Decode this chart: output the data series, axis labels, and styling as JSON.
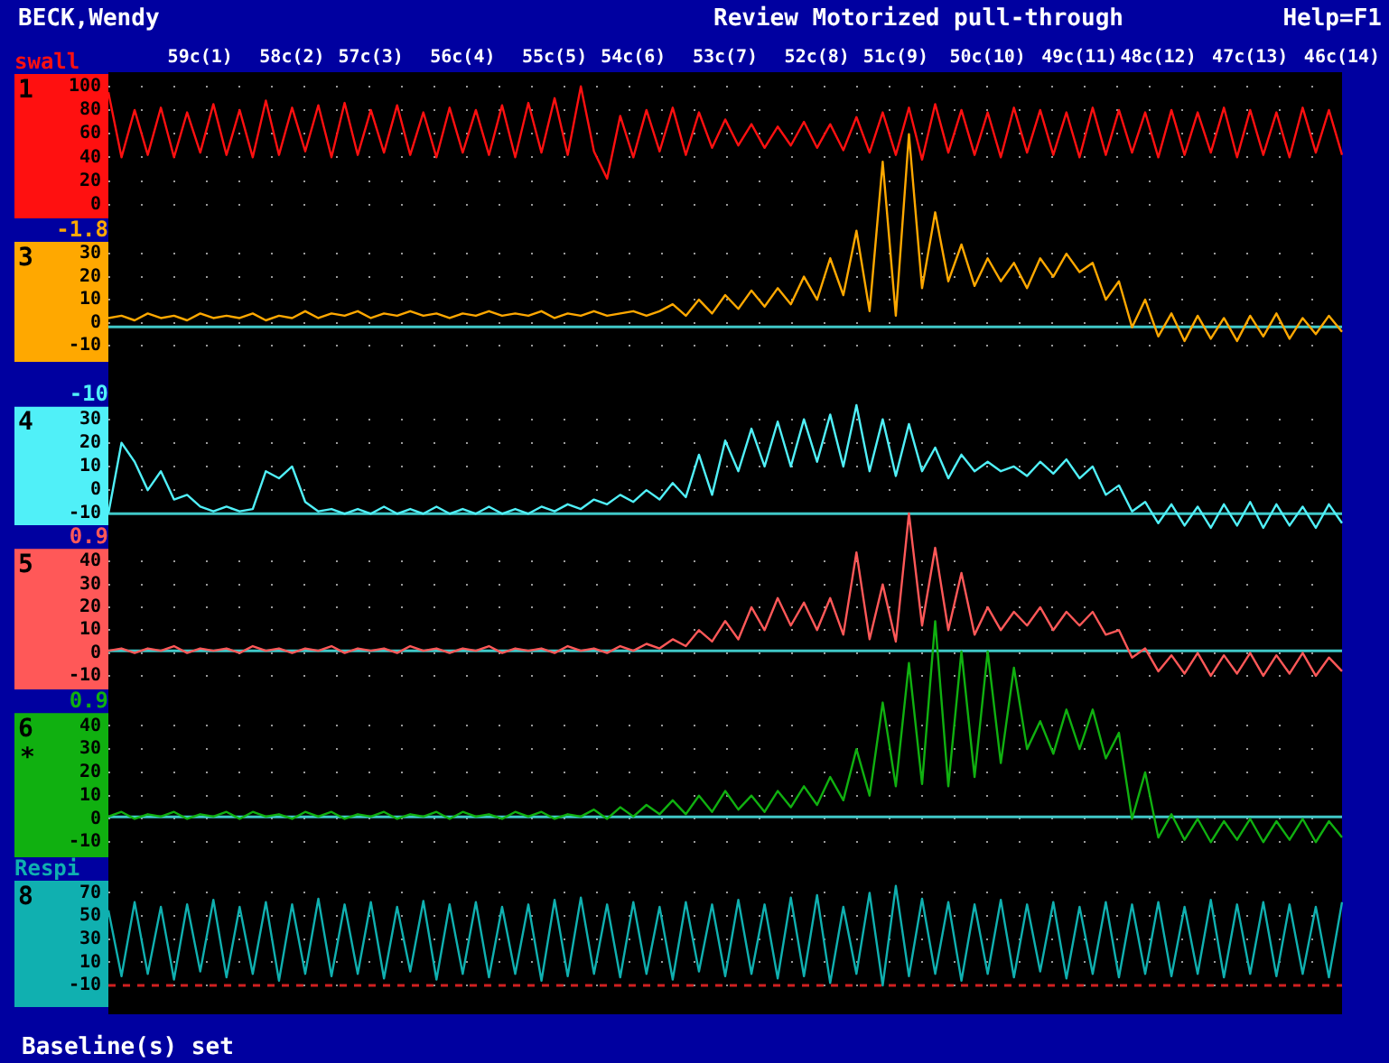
{
  "chart_data": [
    {
      "type": "line",
      "title": "Review Motorized pull-through",
      "annotations": [
        "BECK,Wendy",
        "Help=F1",
        "Baseline(s) set"
      ],
      "ylabel": "swall",
      "categories": [
        null,
        null,
        null,
        null,
        null,
        null,
        null,
        "59c(1)",
        null,
        null,
        null,
        null,
        null,
        null,
        "58c(2)",
        null,
        null,
        null,
        null,
        null,
        "57c(3)",
        null,
        null,
        null,
        null,
        null,
        null,
        "56c(4)",
        null,
        null,
        null,
        null,
        null,
        null,
        "55c(5)",
        null,
        null,
        null,
        null,
        null,
        "54c(6)",
        null,
        null,
        null,
        null,
        null,
        null,
        "53c(7)",
        null,
        null,
        null,
        null,
        null,
        null,
        "52c(8)",
        null,
        null,
        null,
        null,
        null,
        "51c(9)",
        null,
        null,
        null,
        null,
        null,
        null,
        "50c(10)",
        null,
        null,
        null,
        null,
        null,
        null,
        "49c(11)",
        null,
        null,
        null,
        null,
        null,
        "48c(12)",
        null,
        null,
        null,
        null,
        null,
        null,
        "47c(13)",
        null,
        null,
        null,
        null,
        null,
        null,
        "46c(14)"
      ],
      "ylim": [
        -685,
        112
      ],
      "yticks": [
        0,
        20,
        40,
        60,
        80,
        100
      ],
      "grid": "y",
      "series": [
        {
          "name": "1",
          "color": "#ff1010",
          "values": [
            95,
            40,
            80,
            42,
            82,
            40,
            78,
            44,
            85,
            42,
            80,
            40,
            88,
            42,
            82,
            45,
            84,
            40,
            86,
            42,
            80,
            44,
            84,
            42,
            78,
            40,
            82,
            44,
            80,
            42,
            84,
            40,
            86,
            44,
            90,
            42,
            100,
            45,
            22,
            75,
            40,
            80,
            45,
            82,
            42,
            78,
            48,
            72,
            50,
            68,
            48,
            66,
            50,
            70,
            48,
            68,
            46,
            74,
            44,
            78,
            42,
            82,
            38,
            85,
            44,
            80,
            42,
            78,
            40,
            82,
            44,
            80,
            42,
            78,
            40,
            82,
            42,
            80,
            44,
            78,
            40,
            80,
            42,
            78,
            44,
            82,
            40,
            80,
            42,
            78,
            40,
            82,
            44,
            80,
            42
          ]
        }
      ]
    },
    {
      "type": "line",
      "ylabel": "-1.8",
      "categories": [
        null,
        null,
        null,
        null,
        null,
        null,
        null,
        null,
        null,
        null,
        null,
        null,
        null,
        null,
        null,
        null,
        null,
        null,
        null,
        null,
        null,
        null,
        null,
        null,
        null,
        null,
        null,
        null,
        null,
        null,
        null,
        null,
        null,
        null,
        null,
        null,
        null,
        null,
        null,
        null,
        null,
        null,
        null,
        null,
        null,
        null,
        null,
        null,
        null,
        null,
        null,
        null,
        null,
        null,
        null,
        null,
        null,
        null,
        null,
        null,
        null,
        null,
        null,
        null,
        null,
        null,
        null,
        null,
        null,
        null,
        null,
        null,
        null,
        null,
        null,
        null,
        null,
        null,
        null,
        null,
        null,
        null,
        null,
        null,
        null,
        null,
        null,
        null,
        null,
        null,
        null,
        null,
        null,
        null,
        null
      ],
      "ylim": [
        -301,
        109
      ],
      "yticks": [
        -10,
        0,
        10,
        20,
        30
      ],
      "grid": "y",
      "ref_lines": [
        {
          "axis": "y",
          "value": -1.8,
          "color": "#40c8c8"
        }
      ],
      "series": [
        {
          "name": "3",
          "color": "#ffa800",
          "values": [
            2,
            3,
            1,
            4,
            2,
            3,
            1,
            4,
            2,
            3,
            2,
            4,
            1,
            3,
            2,
            5,
            2,
            4,
            3,
            5,
            2,
            4,
            3,
            5,
            3,
            4,
            2,
            4,
            3,
            5,
            3,
            4,
            3,
            5,
            2,
            4,
            3,
            5,
            3,
            4,
            5,
            3,
            5,
            8,
            3,
            10,
            4,
            12,
            6,
            14,
            7,
            15,
            8,
            20,
            10,
            28,
            12,
            40,
            5,
            70,
            3,
            82,
            15,
            48,
            18,
            34,
            16,
            28,
            18,
            26,
            15,
            28,
            20,
            30,
            22,
            26,
            10,
            18,
            -2,
            10,
            -6,
            4,
            -8,
            3,
            -7,
            2,
            -8,
            3,
            -6,
            4,
            -7,
            2,
            -5,
            3,
            -4
          ]
        }
      ]
    },
    {
      "type": "line",
      "ylabel": "-10",
      "categories": [
        null,
        null,
        null,
        null,
        null,
        null,
        null,
        null,
        null,
        null,
        null,
        null,
        null,
        null,
        null,
        null,
        null,
        null,
        null,
        null,
        null,
        null,
        null,
        null,
        null,
        null,
        null,
        null,
        null,
        null,
        null,
        null,
        null,
        null,
        null,
        null,
        null,
        null,
        null,
        null,
        null,
        null,
        null,
        null,
        null,
        null,
        null,
        null,
        null,
        null,
        null,
        null,
        null,
        null,
        null,
        null,
        null,
        null,
        null,
        null,
        null,
        null,
        null,
        null,
        null,
        null,
        null,
        null,
        null,
        null,
        null,
        null,
        null,
        null,
        null,
        null,
        null,
        null,
        null,
        null,
        null,
        null,
        null,
        null,
        null,
        null,
        null,
        null,
        null,
        null,
        null,
        null,
        null,
        null,
        null
      ],
      "ylim": [
        -222,
        177
      ],
      "yticks": [
        -10,
        0,
        10,
        20,
        30
      ],
      "grid": "y",
      "ref_lines": [
        {
          "axis": "y",
          "value": -10,
          "color": "#40c8c8"
        }
      ],
      "series": [
        {
          "name": "4",
          "color": "#50f0f8",
          "values": [
            -10,
            20,
            12,
            0,
            8,
            -4,
            -2,
            -7,
            -9,
            -7,
            -9,
            -8,
            8,
            5,
            10,
            -5,
            -9,
            -8,
            -10,
            -8,
            -10,
            -7,
            -10,
            -8,
            -10,
            -7,
            -10,
            -8,
            -10,
            -7,
            -10,
            -8,
            -10,
            -7,
            -9,
            -6,
            -8,
            -4,
            -6,
            -2,
            -5,
            0,
            -4,
            3,
            -3,
            15,
            -2,
            21,
            8,
            26,
            10,
            29,
            10,
            30,
            12,
            32,
            10,
            36,
            8,
            30,
            6,
            28,
            8,
            18,
            5,
            15,
            8,
            12,
            8,
            10,
            6,
            12,
            7,
            13,
            5,
            10,
            -2,
            2,
            -9,
            -5,
            -14,
            -6,
            -15,
            -7,
            -16,
            -6,
            -15,
            -5,
            -16,
            -6,
            -15,
            -7,
            -16,
            -6,
            -14
          ]
        }
      ]
    },
    {
      "type": "line",
      "ylabel": "0.9",
      "categories": [
        null,
        null,
        null,
        null,
        null,
        null,
        null,
        null,
        null,
        null,
        null,
        null,
        null,
        null,
        null,
        null,
        null,
        null,
        null,
        null,
        null,
        null,
        null,
        null,
        null,
        null,
        null,
        null,
        null,
        null,
        null,
        null,
        null,
        null,
        null,
        null,
        null,
        null,
        null,
        null,
        null,
        null,
        null,
        null,
        null,
        null,
        null,
        null,
        null,
        null,
        null,
        null,
        null,
        null,
        null,
        null,
        null,
        null,
        null,
        null,
        null,
        null,
        null,
        null,
        null,
        null,
        null,
        null,
        null,
        null,
        null,
        null,
        null,
        null,
        null,
        null,
        null,
        null,
        null,
        null,
        null,
        null,
        null,
        null,
        null,
        null,
        null,
        null,
        null,
        null,
        null,
        null,
        null,
        null,
        null
      ],
      "ylim": [
        -158,
        254
      ],
      "yticks": [
        -10,
        0,
        10,
        20,
        30,
        40
      ],
      "grid": "y",
      "ref_lines": [
        {
          "axis": "y",
          "value": 0.9,
          "color": "#40c8c8"
        }
      ],
      "series": [
        {
          "name": "5",
          "color": "#ff5858",
          "values": [
            1,
            2,
            0,
            2,
            1,
            3,
            0,
            2,
            1,
            2,
            0,
            3,
            1,
            2,
            0,
            2,
            1,
            3,
            0,
            2,
            1,
            2,
            0,
            3,
            1,
            2,
            0,
            2,
            1,
            3,
            0,
            2,
            1,
            2,
            0,
            3,
            1,
            2,
            0,
            3,
            1,
            4,
            2,
            6,
            3,
            10,
            5,
            14,
            6,
            20,
            10,
            24,
            12,
            22,
            10,
            24,
            8,
            44,
            6,
            30,
            5,
            61,
            12,
            46,
            10,
            35,
            8,
            20,
            10,
            18,
            12,
            20,
            10,
            18,
            12,
            18,
            8,
            10,
            -2,
            2,
            -8,
            -1,
            -9,
            0,
            -10,
            -1,
            -9,
            0,
            -10,
            -1,
            -9,
            0,
            -10,
            -2,
            -8
          ]
        }
      ]
    },
    {
      "type": "line",
      "ylabel": "0.9",
      "annotations": [
        "*"
      ],
      "categories": [
        null,
        null,
        null,
        null,
        null,
        null,
        null,
        null,
        null,
        null,
        null,
        null,
        null,
        null,
        null,
        null,
        null,
        null,
        null,
        null,
        null,
        null,
        null,
        null,
        null,
        null,
        null,
        null,
        null,
        null,
        null,
        null,
        null,
        null,
        null,
        null,
        null,
        null,
        null,
        null,
        null,
        null,
        null,
        null,
        null,
        null,
        null,
        null,
        null,
        null,
        null,
        null,
        null,
        null,
        null,
        null,
        null,
        null,
        null,
        null,
        null,
        null,
        null,
        null,
        null,
        null,
        null,
        null,
        null,
        null,
        null,
        null,
        null,
        null,
        null,
        null,
        null,
        null,
        null,
        null,
        null,
        null,
        null,
        null,
        null,
        null,
        null,
        null,
        null,
        null,
        null,
        null,
        null,
        null,
        null
      ],
      "ylim": [
        -84,
        321
      ],
      "yticks": [
        -10,
        0,
        10,
        20,
        30,
        40
      ],
      "grid": "y",
      "ref_lines": [
        {
          "axis": "y",
          "value": 0.9,
          "color": "#40c8c8"
        }
      ],
      "series": [
        {
          "name": "6",
          "color": "#10b010",
          "values": [
            1,
            3,
            0,
            2,
            1,
            3,
            0,
            2,
            1,
            3,
            0,
            3,
            1,
            2,
            0,
            3,
            1,
            3,
            0,
            2,
            1,
            3,
            0,
            2,
            1,
            3,
            0,
            3,
            1,
            2,
            0,
            3,
            1,
            3,
            0,
            2,
            1,
            4,
            0,
            5,
            1,
            6,
            2,
            8,
            2,
            10,
            3,
            12,
            4,
            10,
            3,
            12,
            5,
            14,
            6,
            18,
            8,
            30,
            10,
            50,
            14,
            67,
            15,
            85,
            14,
            72,
            18,
            72,
            24,
            65,
            30,
            42,
            28,
            47,
            30,
            47,
            26,
            37,
            0,
            20,
            -8,
            2,
            -9,
            0,
            -10,
            -1,
            -9,
            0,
            -10,
            -1,
            -9,
            0,
            -10,
            -1,
            -8
          ]
        }
      ]
    },
    {
      "type": "line",
      "ylabel": "Respi",
      "categories": [
        null,
        null,
        null,
        null,
        null,
        null,
        null,
        null,
        null,
        null,
        null,
        null,
        null,
        null,
        null,
        null,
        null,
        null,
        null,
        null,
        null,
        null,
        null,
        null,
        null,
        null,
        null,
        null,
        null,
        null,
        null,
        null,
        null,
        null,
        null,
        null,
        null,
        null,
        null,
        null,
        null,
        null,
        null,
        null,
        null,
        null,
        null,
        null,
        null,
        null,
        null,
        null,
        null,
        null,
        null,
        null,
        null,
        null,
        null,
        null,
        null,
        null,
        null,
        null,
        null,
        null,
        null,
        null,
        null,
        null,
        null,
        null,
        null,
        null,
        null,
        null,
        null,
        null,
        null,
        null,
        null,
        null,
        null,
        null,
        null,
        null,
        null,
        null,
        null,
        null,
        null,
        null,
        null,
        null,
        null
      ],
      "ylim": [
        -35,
        780
      ],
      "yticks": [
        -10,
        10,
        30,
        50,
        70
      ],
      "grid": "y",
      "ref_lines": [
        {
          "axis": "y",
          "value": -10,
          "color": "#d02020",
          "line_style": "dashed"
        }
      ],
      "series": [
        {
          "name": "8",
          "color": "#10b0b0",
          "values": [
            55,
            -2,
            62,
            0,
            58,
            -5,
            60,
            2,
            64,
            -3,
            58,
            0,
            62,
            -6,
            60,
            0,
            65,
            -2,
            60,
            0,
            62,
            -4,
            58,
            2,
            63,
            -5,
            60,
            0,
            62,
            -3,
            58,
            0,
            60,
            -6,
            64,
            -2,
            66,
            0,
            60,
            -3,
            62,
            0,
            58,
            -5,
            62,
            2,
            60,
            -2,
            64,
            0,
            60,
            -4,
            66,
            -2,
            68,
            -8,
            58,
            0,
            70,
            -10,
            76,
            -2,
            65,
            0,
            62,
            -6,
            60,
            0,
            64,
            -3,
            60,
            2,
            62,
            -4,
            58,
            0,
            62,
            -3,
            60,
            0,
            62,
            -2,
            58,
            0,
            64,
            -3,
            60,
            0,
            62,
            -2,
            60,
            0,
            58,
            -3,
            62
          ]
        }
      ]
    }
  ]
}
